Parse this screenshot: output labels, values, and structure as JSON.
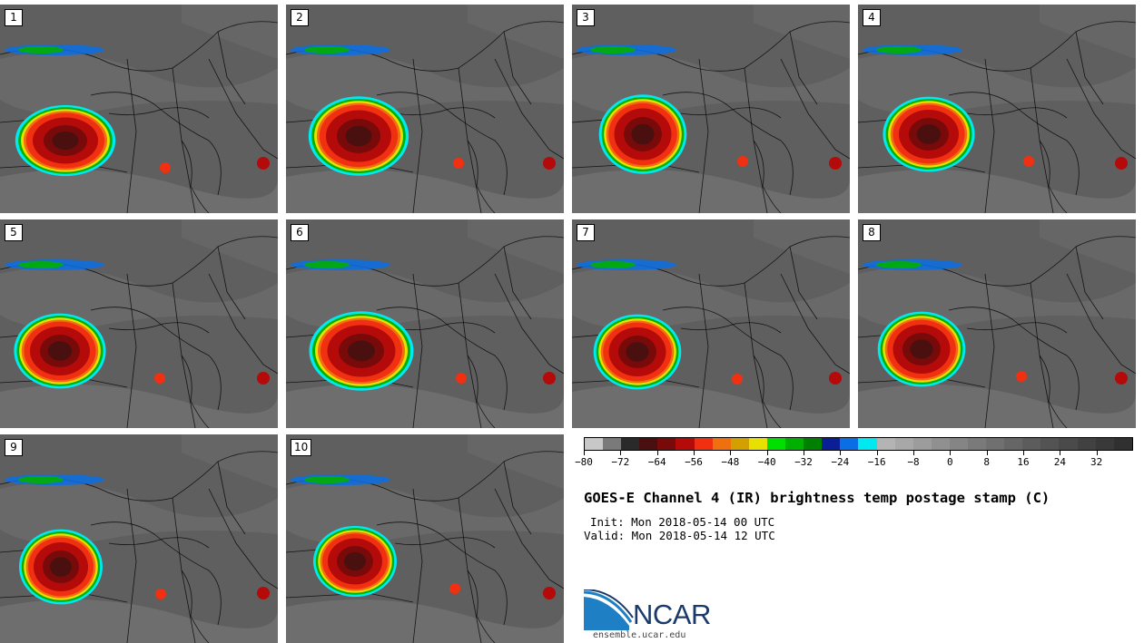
{
  "panels": [
    {
      "label": "1"
    },
    {
      "label": "2"
    },
    {
      "label": "3"
    },
    {
      "label": "4"
    },
    {
      "label": "5"
    },
    {
      "label": "6"
    },
    {
      "label": "7"
    },
    {
      "label": "8"
    },
    {
      "label": "9"
    },
    {
      "label": "10"
    }
  ],
  "colorbar": {
    "colors": [
      "#c8c8c8",
      "#7a7a7a",
      "#2a2a2a",
      "#4a1010",
      "#780a0a",
      "#b40a0a",
      "#f03010",
      "#f07010",
      "#d2a000",
      "#e8e000",
      "#00e000",
      "#00b000",
      "#008000",
      "#0a1e96",
      "#0a6ee6",
      "#00e8f0",
      "#b4b4b4",
      "#a8a8a8",
      "#9c9c9c",
      "#909090",
      "#858585",
      "#7a7a7a",
      "#707070",
      "#666666",
      "#5c5c5c",
      "#535353",
      "#4a4a4a",
      "#414141",
      "#393939",
      "#303030"
    ],
    "tick_labels": [
      "-80",
      "-72",
      "-64",
      "-56",
      "-48",
      "-40",
      "-32",
      "-24",
      "-16",
      "-8",
      "0",
      "8",
      "16",
      "24",
      "32"
    ],
    "min": -80,
    "max": 40,
    "step": 8
  },
  "title": "GOES-E Channel 4 (IR) brightness temp postage stamp (C)",
  "init": "Init: Mon 2018-05-14 00 UTC",
  "valid": "Valid: Mon 2018-05-14 12 UTC",
  "logo": {
    "text": "NCAR",
    "site": "ensemble.ucar.edu"
  }
}
